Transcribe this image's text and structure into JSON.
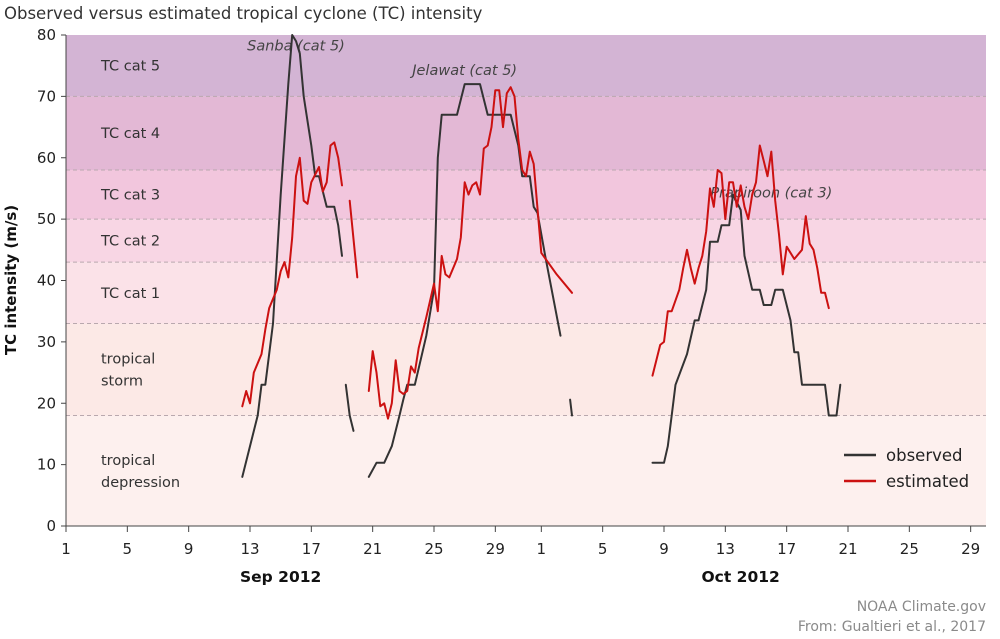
{
  "chart_data": {
    "type": "line",
    "title": "Observed versus estimated tropical cyclone (TC) intensity",
    "xlabel": "",
    "ylabel": "TC intensity (m/s)",
    "ylim": [
      0,
      80
    ],
    "yticks": [
      0,
      10,
      20,
      30,
      40,
      50,
      60,
      70,
      80
    ],
    "xlim": [
      "2012-09-01",
      "2012-10-31"
    ],
    "xticks": [
      {
        "date": "2012-09-01",
        "label": "1"
      },
      {
        "date": "2012-09-05",
        "label": "5"
      },
      {
        "date": "2012-09-09",
        "label": "9"
      },
      {
        "date": "2012-09-13",
        "label": "13"
      },
      {
        "date": "2012-09-17",
        "label": "17"
      },
      {
        "date": "2012-09-21",
        "label": "21"
      },
      {
        "date": "2012-09-25",
        "label": "25"
      },
      {
        "date": "2012-09-29",
        "label": "29"
      },
      {
        "date": "2012-10-02",
        "label": "1"
      },
      {
        "date": "2012-10-06",
        "label": "5"
      },
      {
        "date": "2012-10-10",
        "label": "9"
      },
      {
        "date": "2012-10-14",
        "label": "13"
      },
      {
        "date": "2012-10-18",
        "label": "17"
      },
      {
        "date": "2012-10-22",
        "label": "21"
      },
      {
        "date": "2012-10-26",
        "label": "25"
      },
      {
        "date": "2012-10-30",
        "label": "29"
      }
    ],
    "month_labels": [
      {
        "date": "2012-09-15",
        "label": "Sep 2012"
      },
      {
        "date": "2012-10-15",
        "label": "Oct 2012"
      }
    ],
    "categories_bands": [
      {
        "label": "tropical depression",
        "ymin": 0,
        "ymax": 18,
        "color": "#fdf0ee"
      },
      {
        "label": "tropical storm",
        "ymin": 18,
        "ymax": 33,
        "color": "#fce9e6"
      },
      {
        "label": "TC cat 1",
        "ymin": 33,
        "ymax": 43,
        "color": "#fbe2e8"
      },
      {
        "label": "TC cat 2",
        "ymin": 43,
        "ymax": 50,
        "color": "#f8d6e4"
      },
      {
        "label": "TC cat 3",
        "ymin": 50,
        "ymax": 58,
        "color": "#f2c6dd"
      },
      {
        "label": "TC cat 4",
        "ymin": 58,
        "ymax": 70,
        "color": "#e3b8d5"
      },
      {
        "label": "TC cat 5",
        "ymin": 70,
        "ymax": 80,
        "color": "#d3b4d4"
      }
    ],
    "annotations": [
      {
        "text": "Sanba (cat 5)",
        "date": "2012-09-16",
        "y": 77.5
      },
      {
        "text": "Jelawat (cat 5)",
        "date": "2012-09-27",
        "y": 73.5
      },
      {
        "text": "Prapiroon (cat 3)",
        "date": "2012-10-17",
        "y": 53.5
      }
    ],
    "series": [
      {
        "name": "observed",
        "color": "#333333",
        "segments": [
          [
            [
              "2012-09-12 12:00",
              8
            ],
            [
              "2012-09-13 12:00",
              18
            ],
            [
              "2012-09-13 18:00",
              23
            ],
            [
              "2012-09-14",
              23
            ],
            [
              "2012-09-14 12:00",
              33
            ],
            [
              "2012-09-15",
              54
            ],
            [
              "2012-09-15 12:00",
              72
            ],
            [
              "2012-09-15 18:00",
              80
            ],
            [
              "2012-09-16",
              79
            ],
            [
              "2012-09-16 06:00",
              77
            ],
            [
              "2012-09-16 12:00",
              70
            ],
            [
              "2012-09-17",
              62
            ],
            [
              "2012-09-17 06:00",
              57
            ],
            [
              "2012-09-17 12:00",
              57
            ],
            [
              "2012-09-18",
              52
            ],
            [
              "2012-09-18 12:00",
              52
            ],
            [
              "2012-09-18 18:00",
              49
            ],
            [
              "2012-09-19",
              44
            ]
          ],
          [
            [
              "2012-09-19 06:00",
              23
            ],
            [
              "2012-09-19 12:00",
              18
            ],
            [
              "2012-09-19 18:00",
              15.5
            ]
          ],
          [
            [
              "2012-09-20 18:00",
              8
            ],
            [
              "2012-09-21 06:00",
              10.3
            ],
            [
              "2012-09-21 18:00",
              10.3
            ],
            [
              "2012-09-22 06:00",
              13
            ],
            [
              "2012-09-22 18:00",
              18
            ],
            [
              "2012-09-23",
              20.6
            ],
            [
              "2012-09-23 06:00",
              23
            ],
            [
              "2012-09-23 18:00",
              23
            ],
            [
              "2012-09-24",
              25.7
            ],
            [
              "2012-09-24 12:00",
              31
            ],
            [
              "2012-09-25",
              38.5
            ],
            [
              "2012-09-25 06:00",
              60
            ],
            [
              "2012-09-25 12:00",
              67
            ],
            [
              "2012-09-26 12:00",
              67
            ],
            [
              "2012-09-27",
              72
            ],
            [
              "2012-09-28",
              72
            ],
            [
              "2012-09-28 12:00",
              67
            ],
            [
              "2012-09-30",
              67
            ],
            [
              "2012-09-30 12:00",
              62
            ],
            [
              "2012-09-30 18:00",
              57
            ],
            [
              "2012-10-01 06:00",
              57
            ],
            [
              "2012-10-01 12:00",
              52
            ],
            [
              "2012-10-01 18:00",
              51
            ],
            [
              "2012-10-02 06:00",
              44
            ],
            [
              "2012-10-03 06:00",
              31
            ]
          ],
          [
            [
              "2012-10-03 21:00",
              20.6
            ],
            [
              "2012-10-04",
              18
            ]
          ],
          [
            [
              "2012-10-09 06:00",
              10.3
            ],
            [
              "2012-10-10",
              10.3
            ],
            [
              "2012-10-10 06:00",
              13
            ],
            [
              "2012-10-10 12:00",
              18
            ],
            [
              "2012-10-10 18:00",
              23
            ],
            [
              "2012-10-11 12:00",
              28
            ],
            [
              "2012-10-12",
              33.5
            ],
            [
              "2012-10-12 06:00",
              33.5
            ],
            [
              "2012-10-12 18:00",
              38.5
            ],
            [
              "2012-10-13",
              46.3
            ],
            [
              "2012-10-13 12:00",
              46.3
            ],
            [
              "2012-10-13 18:00",
              49
            ],
            [
              "2012-10-14 06:00",
              49
            ],
            [
              "2012-10-14 12:00",
              54
            ],
            [
              "2012-10-15",
              51.5
            ],
            [
              "2012-10-15 06:00",
              44
            ],
            [
              "2012-10-15 18:00",
              38.5
            ],
            [
              "2012-10-16 06:00",
              38.5
            ],
            [
              "2012-10-16 12:00",
              36
            ],
            [
              "2012-10-17",
              36
            ],
            [
              "2012-10-17 06:00",
              38.5
            ],
            [
              "2012-10-17 18:00",
              38.5
            ],
            [
              "2012-10-18 06:00",
              33.5
            ],
            [
              "2012-10-18 12:00",
              28.3
            ],
            [
              "2012-10-18 18:00",
              28.3
            ],
            [
              "2012-10-19",
              23
            ],
            [
              "2012-10-20 12:00",
              23
            ],
            [
              "2012-10-20 18:00",
              18
            ],
            [
              "2012-10-21 06:00",
              18
            ],
            [
              "2012-10-21 12:00",
              23
            ]
          ]
        ]
      },
      {
        "name": "estimated",
        "color": "#cc1111",
        "segments": [
          [
            [
              "2012-09-12 12:00",
              19.5
            ],
            [
              "2012-09-12 18:00",
              22
            ],
            [
              "2012-09-13",
              20
            ],
            [
              "2012-09-13 06:00",
              25
            ],
            [
              "2012-09-13 18:00",
              28
            ],
            [
              "2012-09-14",
              32
            ],
            [
              "2012-09-14 06:00",
              35.5
            ],
            [
              "2012-09-14 12:00",
              37
            ],
            [
              "2012-09-14 18:00",
              38.5
            ],
            [
              "2012-09-15",
              41.5
            ],
            [
              "2012-09-15 06:00",
              43
            ],
            [
              "2012-09-15 12:00",
              40.5
            ],
            [
              "2012-09-15 18:00",
              47
            ],
            [
              "2012-09-16",
              57
            ],
            [
              "2012-09-16 06:00",
              60
            ],
            [
              "2012-09-16 12:00",
              53
            ],
            [
              "2012-09-16 18:00",
              52.5
            ],
            [
              "2012-09-17",
              56
            ],
            [
              "2012-09-17 12:00",
              58.5
            ],
            [
              "2012-09-17 18:00",
              54.5
            ],
            [
              "2012-09-18",
              56
            ],
            [
              "2012-09-18 06:00",
              62
            ],
            [
              "2012-09-18 12:00",
              62.5
            ],
            [
              "2012-09-18 18:00",
              60
            ],
            [
              "2012-09-19",
              55.5
            ]
          ],
          [
            [
              "2012-09-19 12:00",
              53
            ],
            [
              "2012-09-20",
              40.5
            ]
          ],
          [
            [
              "2012-09-20 18:00",
              22
            ],
            [
              "2012-09-21",
              28.5
            ],
            [
              "2012-09-21 06:00",
              25
            ],
            [
              "2012-09-21 12:00",
              19.5
            ],
            [
              "2012-09-21 18:00",
              20
            ],
            [
              "2012-09-22",
              17.5
            ],
            [
              "2012-09-22 06:00",
              20
            ],
            [
              "2012-09-22 12:00",
              27
            ],
            [
              "2012-09-22 18:00",
              22
            ],
            [
              "2012-09-23",
              21.5
            ],
            [
              "2012-09-23 06:00",
              22
            ],
            [
              "2012-09-23 12:00",
              26
            ],
            [
              "2012-09-23 18:00",
              25
            ],
            [
              "2012-09-24",
              29
            ],
            [
              "2012-09-24 12:00",
              34
            ],
            [
              "2012-09-25",
              39.5
            ],
            [
              "2012-09-25 06:00",
              35
            ],
            [
              "2012-09-25 12:00",
              44
            ],
            [
              "2012-09-25 18:00",
              41
            ],
            [
              "2012-09-26",
              40.5
            ],
            [
              "2012-09-26 12:00",
              43.5
            ],
            [
              "2012-09-26 18:00",
              47
            ],
            [
              "2012-09-27",
              56
            ],
            [
              "2012-09-27 06:00",
              54
            ],
            [
              "2012-09-27 12:00",
              55.5
            ],
            [
              "2012-09-27 18:00",
              56
            ],
            [
              "2012-09-28",
              54
            ],
            [
              "2012-09-28 06:00",
              61.5
            ],
            [
              "2012-09-28 12:00",
              62
            ],
            [
              "2012-09-28 18:00",
              65
            ],
            [
              "2012-09-29",
              71
            ],
            [
              "2012-09-29 06:00",
              71
            ],
            [
              "2012-09-29 12:00",
              65
            ],
            [
              "2012-09-29 18:00",
              70.5
            ],
            [
              "2012-09-30",
              71.5
            ],
            [
              "2012-09-30 06:00",
              70
            ],
            [
              "2012-09-30 12:00",
              63
            ],
            [
              "2012-09-30 18:00",
              58
            ],
            [
              "2012-10-01",
              57
            ],
            [
              "2012-10-01 06:00",
              61
            ],
            [
              "2012-10-01 12:00",
              59
            ],
            [
              "2012-10-02",
              44.5
            ],
            [
              "2012-10-03",
              41
            ],
            [
              "2012-10-04",
              38
            ]
          ],
          [
            [
              "2012-10-09 06:00",
              24.5
            ],
            [
              "2012-10-09 18:00",
              29.5
            ],
            [
              "2012-10-10",
              30
            ],
            [
              "2012-10-10 06:00",
              35
            ],
            [
              "2012-10-10 12:00",
              35
            ],
            [
              "2012-10-11",
              38.5
            ],
            [
              "2012-10-11 06:00",
              42
            ],
            [
              "2012-10-11 12:00",
              45
            ],
            [
              "2012-10-11 18:00",
              42
            ],
            [
              "2012-10-12",
              39.5
            ],
            [
              "2012-10-12 06:00",
              42
            ],
            [
              "2012-10-12 12:00",
              44
            ],
            [
              "2012-10-12 18:00",
              48
            ],
            [
              "2012-10-13",
              55
            ],
            [
              "2012-10-13 06:00",
              52
            ],
            [
              "2012-10-13 12:00",
              58
            ],
            [
              "2012-10-13 18:00",
              57.5
            ],
            [
              "2012-10-14",
              50
            ],
            [
              "2012-10-14 06:00",
              56
            ],
            [
              "2012-10-14 12:00",
              56
            ],
            [
              "2012-10-14 18:00",
              52
            ],
            [
              "2012-10-15",
              55.5
            ],
            [
              "2012-10-15 06:00",
              52
            ],
            [
              "2012-10-15 12:00",
              50
            ],
            [
              "2012-10-15 18:00",
              54
            ],
            [
              "2012-10-16",
              56
            ],
            [
              "2012-10-16 06:00",
              62
            ],
            [
              "2012-10-16 12:00",
              59.5
            ],
            [
              "2012-10-16 18:00",
              57
            ],
            [
              "2012-10-17",
              61
            ],
            [
              "2012-10-17 06:00",
              53
            ],
            [
              "2012-10-17 12:00",
              47.5
            ],
            [
              "2012-10-17 18:00",
              41
            ],
            [
              "2012-10-18",
              45.5
            ],
            [
              "2012-10-18 12:00",
              43.5
            ],
            [
              "2012-10-19",
              45
            ],
            [
              "2012-10-19 06:00",
              50.5
            ],
            [
              "2012-10-19 12:00",
              46
            ],
            [
              "2012-10-19 18:00",
              45
            ],
            [
              "2012-10-20",
              42
            ],
            [
              "2012-10-20 06:00",
              38
            ],
            [
              "2012-10-20 12:00",
              38
            ],
            [
              "2012-10-20 18:00",
              35.5
            ]
          ]
        ]
      }
    ],
    "legend": {
      "placement": "bottom-right",
      "entries": [
        "observed",
        "estimated"
      ]
    }
  },
  "footer": {
    "source_line1": "NOAA Climate.gov",
    "source_line2": "From: Gualtieri et al., 2017"
  }
}
